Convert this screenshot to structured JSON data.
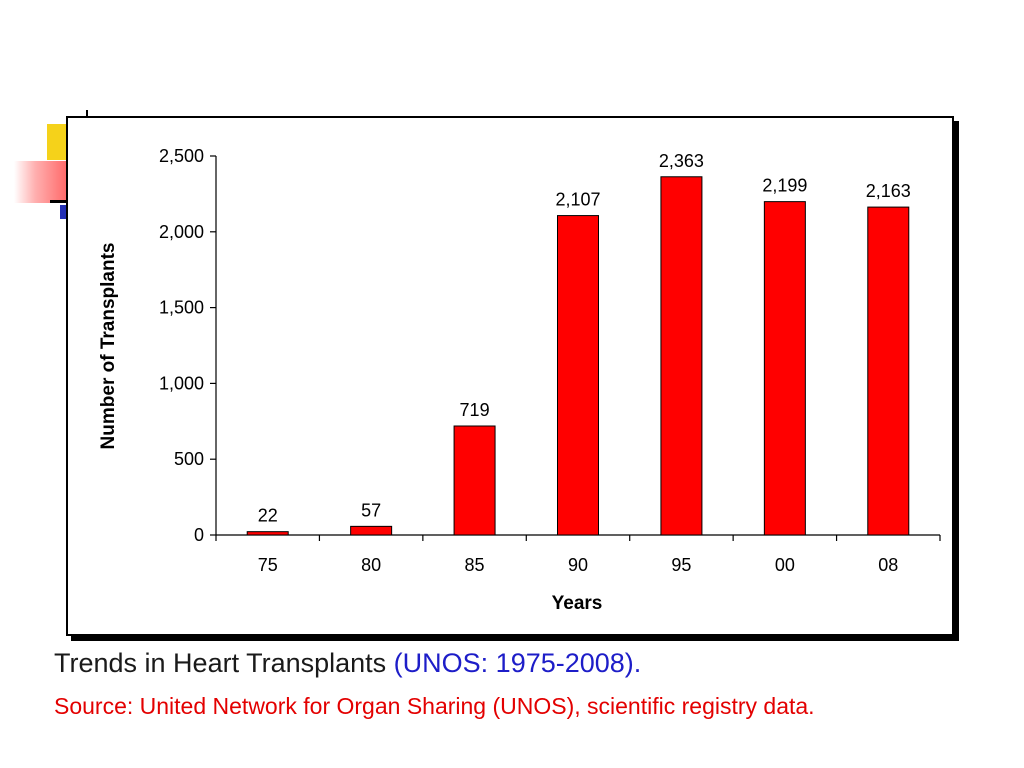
{
  "caption": {
    "title": "Trends in Heart Transplants",
    "title_paren": "(UNOS: 1975-2008).",
    "source": "Source: United Network for Organ Sharing (UNOS), scientific registry data."
  },
  "colors": {
    "bar": "#ff0000",
    "caption_text": "#1a1a1a",
    "caption_paren": "#1d1dc8",
    "source_text": "#e30000",
    "deco_yellow": "#f5d21a",
    "deco_red": "#ff5a5a",
    "deco_blue": "#2330b5"
  },
  "chart_data": {
    "type": "bar",
    "categories": [
      "75",
      "80",
      "85",
      "90",
      "95",
      "00",
      "08"
    ],
    "values": [
      22,
      57,
      719,
      2107,
      2363,
      2199,
      2163
    ],
    "data_labels": [
      "22",
      "57",
      "719",
      "2,107",
      "2,363",
      "2,199",
      "2,163"
    ],
    "xlabel": "Years",
    "ylabel": "Number of Transplants",
    "ylim": [
      0,
      2500
    ],
    "yticks": [
      0,
      500,
      1000,
      1500,
      2000,
      2500
    ],
    "ytick_labels": [
      "0",
      "500",
      "1,000",
      "1,500",
      "2,000",
      "2,500"
    ],
    "grid": false,
    "legend": "none"
  }
}
